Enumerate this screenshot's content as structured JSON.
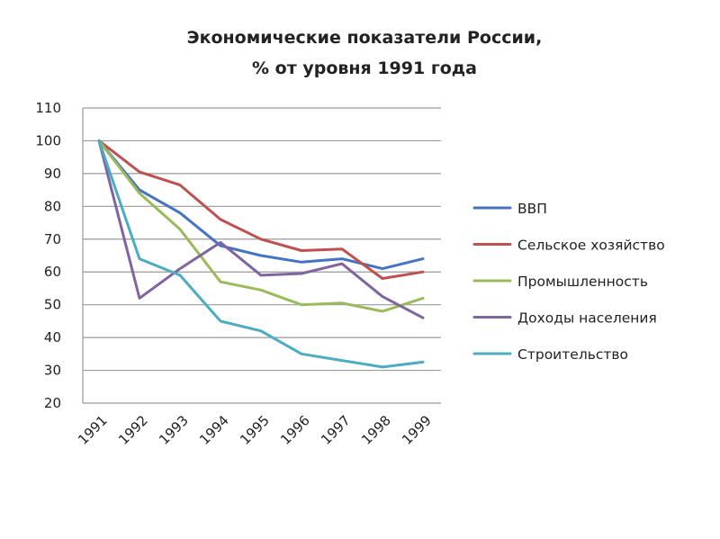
{
  "chart_data": {
    "type": "line",
    "title": [
      "Экономические показатели России,",
      "% от уровня 1991 года"
    ],
    "xlabel": "",
    "ylabel": "",
    "categories": [
      "1991",
      "1992",
      "1993",
      "1994",
      "1995",
      "1996",
      "1997",
      "1998",
      "1999"
    ],
    "ylim": [
      20,
      110
    ],
    "yticks": [
      20,
      30,
      40,
      50,
      60,
      70,
      80,
      90,
      100,
      110
    ],
    "grid": true,
    "legend_position": "right",
    "series": [
      {
        "name": "ВВП",
        "color": "#4472c4",
        "values": [
          100,
          85,
          78,
          68,
          65,
          63,
          64,
          61,
          64
        ]
      },
      {
        "name": "Сельское хозяйство",
        "color": "#c0504d",
        "values": [
          100,
          90.5,
          86.5,
          76,
          70,
          66.5,
          67,
          58,
          60
        ]
      },
      {
        "name": "Промышленность",
        "color": "#9bbb59",
        "values": [
          100,
          84,
          73,
          57,
          54.5,
          50,
          50.5,
          48,
          52
        ]
      },
      {
        "name": "Доходы населения",
        "color": "#8064a2",
        "values": [
          100,
          52,
          61,
          69,
          59,
          59.5,
          62.5,
          52.5,
          46
        ]
      },
      {
        "name": "Строительство",
        "color": "#4bacc6",
        "values": [
          100,
          64,
          59,
          45,
          42,
          35,
          33,
          31,
          32.5
        ]
      }
    ]
  }
}
